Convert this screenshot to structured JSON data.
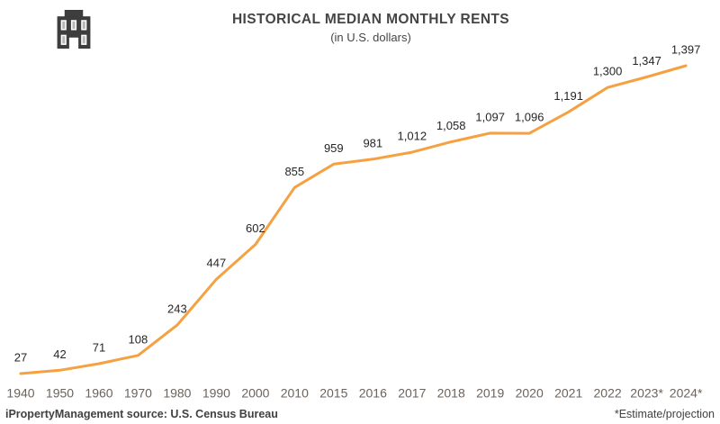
{
  "header": {
    "logo_icon": "building-icon",
    "title": "HISTORICAL MEDIAN MONTHLY RENTS",
    "subtitle": "(in U.S. dollars)"
  },
  "chart_data": {
    "type": "line",
    "title": "HISTORICAL MEDIAN MONTHLY RENTS",
    "subtitle": "(in U.S. dollars)",
    "categories": [
      "1940",
      "1950",
      "1960",
      "1970",
      "1980",
      "1990",
      "2000",
      "2010",
      "2015",
      "2016",
      "2017",
      "2018",
      "2019",
      "2020",
      "2021",
      "2022",
      "2023*",
      "2024*"
    ],
    "values": [
      27,
      42,
      71,
      108,
      243,
      447,
      602,
      855,
      959,
      981,
      1012,
      1058,
      1097,
      1096,
      1191,
      1300,
      1347,
      1397
    ],
    "value_labels": [
      "27",
      "42",
      "71",
      "108",
      "243",
      "447",
      "602",
      "855",
      "959",
      "981",
      "1,012",
      "1,058",
      "1,097",
      "1,096",
      "1,191",
      "1,300",
      "1,347",
      "1,397"
    ],
    "xlabel": "",
    "ylabel": "",
    "ylim": [
      0,
      1450
    ],
    "grid": false,
    "legend": "none",
    "line_color": "#F5A142",
    "data_label_color": "#262626",
    "axis_label_color": "#6B635C"
  },
  "footer": {
    "source": "iPropertyManagement source: U.S. Census Bureau",
    "note": "*Estimate/projection"
  }
}
